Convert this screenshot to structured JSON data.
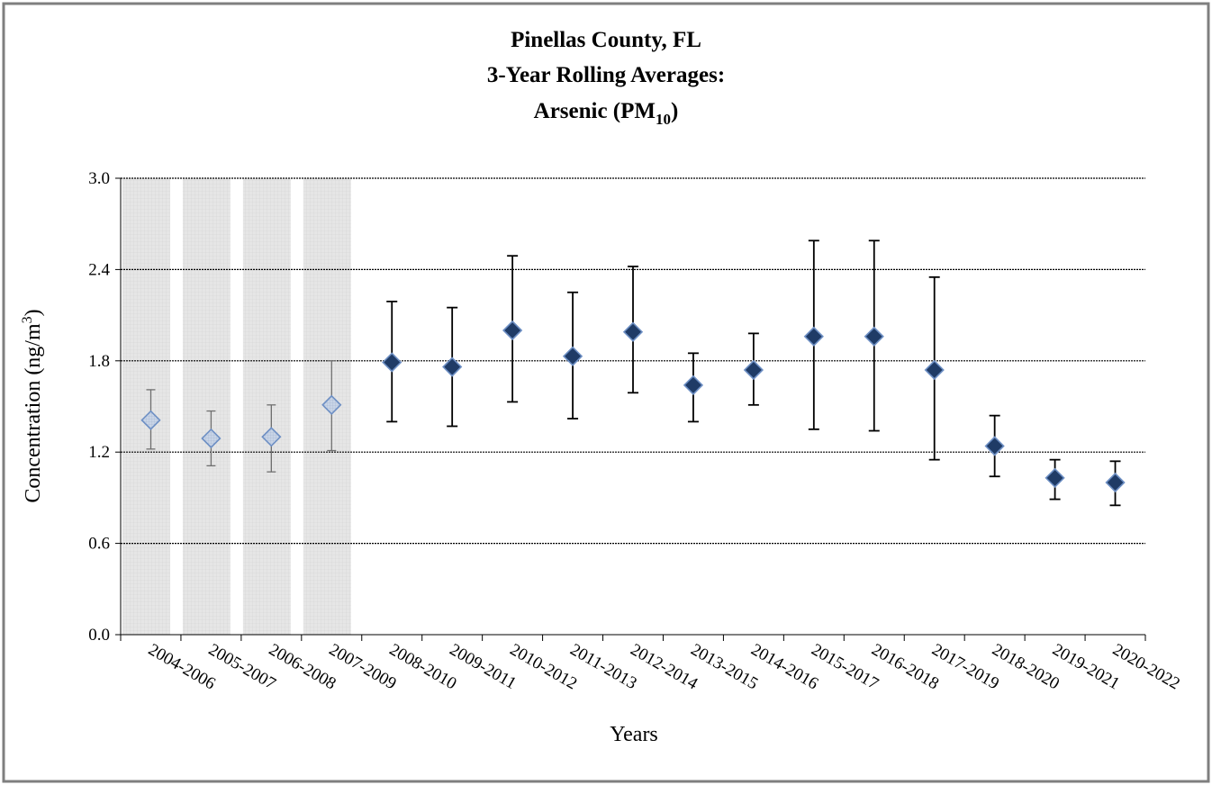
{
  "chart_data": {
    "type": "scatter",
    "title_lines": [
      "Pinellas County, FL",
      "3-Year Rolling Averages:"
    ],
    "title_line3": {
      "main": "Arsenic (PM",
      "sub": "10",
      "tail": ")"
    },
    "xlabel": "Years",
    "ylabel": {
      "main": "Concentration (ng/m",
      "sup": "3",
      "tail": ")"
    },
    "ylim": [
      0,
      3.0
    ],
    "yticks": [
      "0.0",
      "0.6",
      "1.2",
      "1.8",
      "2.4",
      "3.0"
    ],
    "grid": "horizontal",
    "categories": [
      "2004-2006",
      "2005-2007",
      "2006-2008",
      "2007-2009",
      "2008-2010",
      "2009-2011",
      "2010-2012",
      "2011-2013",
      "2012-2014",
      "2013-2015",
      "2014-2016",
      "2015-2017",
      "2016-2018",
      "2017-2019",
      "2018-2020",
      "2019-2021",
      "2020-2022"
    ],
    "values": [
      1.41,
      1.29,
      1.3,
      1.51,
      1.79,
      1.76,
      2.0,
      1.83,
      1.99,
      1.64,
      1.74,
      1.96,
      1.96,
      1.74,
      1.24,
      1.03,
      1.0
    ],
    "error_low": [
      1.22,
      1.11,
      1.07,
      1.21,
      1.4,
      1.37,
      1.53,
      1.42,
      1.59,
      1.4,
      1.51,
      1.35,
      1.34,
      1.15,
      1.04,
      0.89,
      0.85
    ],
    "error_high": [
      1.61,
      1.47,
      1.51,
      1.8,
      2.19,
      2.15,
      2.49,
      2.25,
      2.42,
      1.85,
      1.98,
      2.59,
      2.59,
      2.35,
      1.44,
      1.15,
      1.14
    ],
    "shaded_categories": [
      "2004-2006",
      "2005-2007",
      "2006-2008",
      "2007-2009"
    ],
    "colors": {
      "marker": "#1f3b66",
      "marker_edge": "#6d8fc4",
      "shaded_marker": "#b8c7dd",
      "shaded_bg": "#e3e3e3",
      "grid": "#000000",
      "frame": "#7f7f7f"
    }
  }
}
